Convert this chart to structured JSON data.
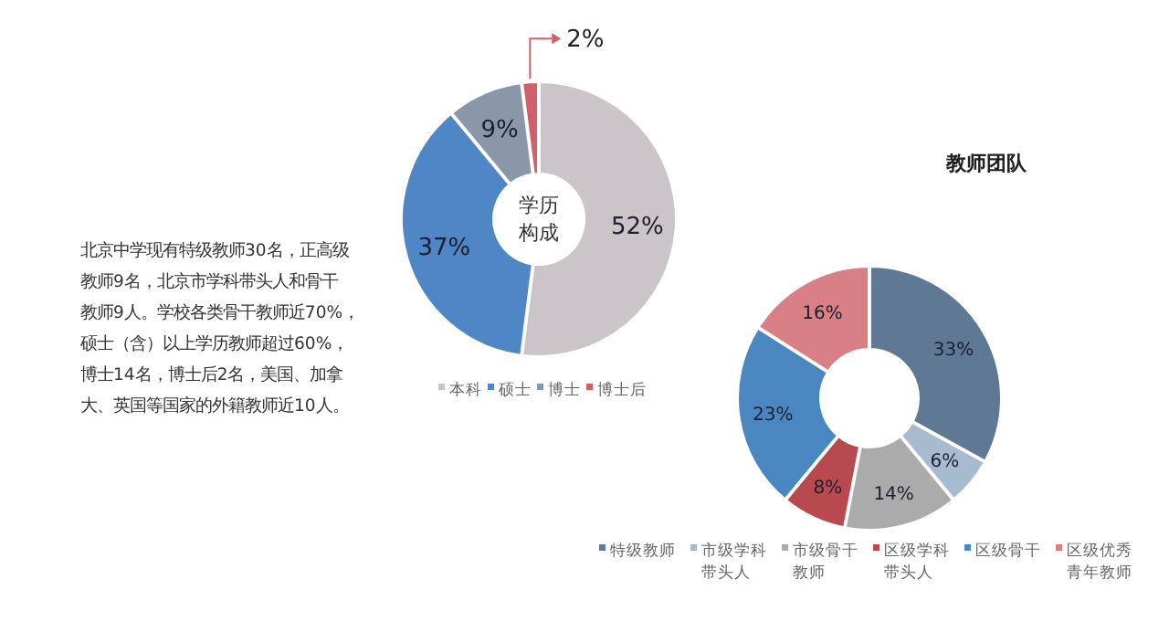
{
  "chart_data": [
    {
      "type": "other",
      "annotations": [
        "北京中学现有特级教师30名，正高级教师9名，北京市学科带头人和骨干教师9人。学校各类骨干教师近70%，硕士（含）以上学历教师超过60%，博士14名，博士后2名，美国、加拿大、英国等国家的外籍教师近10人。"
      ]
    },
    {
      "type": "donut",
      "title": "学历构成",
      "categories": [
        "本科",
        "硕士",
        "博士",
        "博士后"
      ],
      "values": [
        52,
        37,
        9,
        2
      ],
      "colors": [
        "#cbc4c8",
        "#4f86c6",
        "#8a97a8",
        "#d0606b"
      ],
      "value_labels": [
        "52%",
        "37%",
        "9%",
        "2%"
      ],
      "legend": "bottom"
    },
    {
      "type": "donut",
      "title": "教师团队",
      "categories": [
        "特级教师",
        "市级学科带头人",
        "市级骨干教师",
        "区级学科带头人",
        "区级骨干",
        "区级优秀青年教师"
      ],
      "values": [
        33,
        6,
        14,
        8,
        23,
        16
      ],
      "colors": [
        "#5f7893",
        "#a7bbd0",
        "#ababab",
        "#b84a4f",
        "#4a86c0",
        "#d98087"
      ],
      "value_labels": [
        "33%",
        "6%",
        "14%",
        "8%",
        "23%",
        "16%"
      ],
      "legend": "bottom"
    }
  ]
}
